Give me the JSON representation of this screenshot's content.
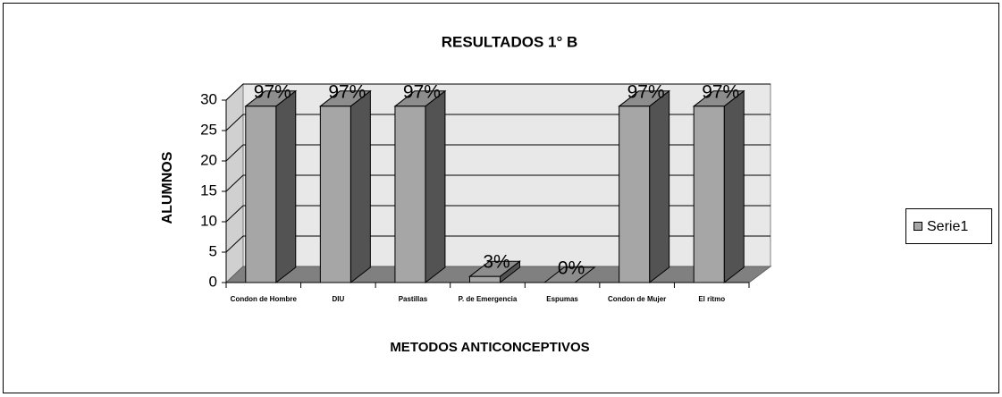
{
  "chart_data": {
    "type": "bar3d",
    "title": "RESULTADOS 1° B",
    "xlabel": "METODOS ANTICONCEPTIVOS",
    "ylabel": "ALUMNOS",
    "categories": [
      "Condon de Hombre",
      "DIU",
      "Pastillas",
      "P. de Emergencia",
      "Espumas",
      "Condon de Mujer",
      "El ritmo"
    ],
    "series": [
      {
        "name": "Serie1",
        "color": "#a6a6a6",
        "values": [
          29,
          29,
          29,
          1,
          0,
          29,
          29
        ],
        "value_labels": [
          "97%",
          "97%",
          "97%",
          "3%",
          "0%",
          "97%",
          "97%"
        ]
      }
    ],
    "ylim": [
      0,
      30
    ],
    "yticks": [
      0,
      5,
      10,
      15,
      20,
      25,
      30
    ],
    "grid": true,
    "legend": "right"
  }
}
